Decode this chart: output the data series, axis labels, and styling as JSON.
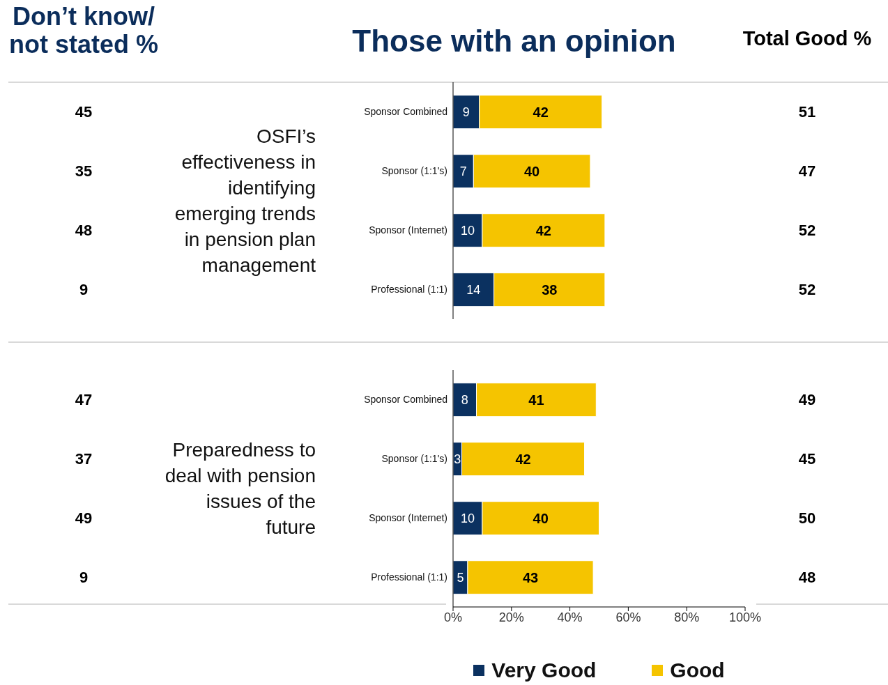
{
  "chart_data": [
    {
      "type": "other",
      "title": "Don’t know/ not stated %",
      "values": [
        45,
        35,
        48,
        9,
        47,
        37,
        49,
        9
      ],
      "data_labels": true
    },
    {
      "type": "bar",
      "title": "Those with an opinion",
      "ylabel": "OSFI’s effectiveness in identifying emerging trends in pension plan management",
      "orientation": "horizontal",
      "stacked": true,
      "categories": [
        "Sponsor Combined",
        "Sponsor (1:1's)",
        "Sponsor (Internet)",
        "Professional (1:1)"
      ],
      "series": [
        {
          "color": "#0b3160",
          "values": [
            9,
            7,
            10,
            14
          ]
        },
        {
          "color": "#f5c400",
          "values": [
            42,
            40,
            42,
            38
          ]
        }
      ],
      "xlim": [
        0,
        100
      ],
      "tick_labels": "y",
      "data_labels": true
    },
    {
      "type": "bar",
      "ylabel": "Preparedness to deal with pension issues of the future",
      "orientation": "horizontal",
      "stacked": true,
      "categories": [
        "Sponsor Combined",
        "Sponsor (1:1's)",
        "Sponsor (Internet)",
        "Professional (1:1)"
      ],
      "series": [
        {
          "name": "Very Good",
          "color": "#0b3160",
          "values": [
            8,
            3,
            10,
            5
          ]
        },
        {
          "name": "Good",
          "color": "#f5c400",
          "values": [
            41,
            42,
            40,
            43
          ]
        }
      ],
      "xlim": [
        0,
        100
      ],
      "xticks": [
        {
          "value": 0,
          "label": "0%"
        },
        {
          "value": 20,
          "label": "20%"
        },
        {
          "value": 40,
          "label": "40%"
        },
        {
          "value": 60,
          "label": "60%"
        },
        {
          "value": 80,
          "label": "80%"
        },
        {
          "value": 100,
          "label": "100%"
        }
      ],
      "data_labels": true,
      "legend": "bottom"
    },
    {
      "type": "other",
      "title": "Total Good %",
      "values": [
        51,
        47,
        52,
        52,
        49,
        45,
        50,
        48
      ],
      "data_labels": true
    }
  ]
}
